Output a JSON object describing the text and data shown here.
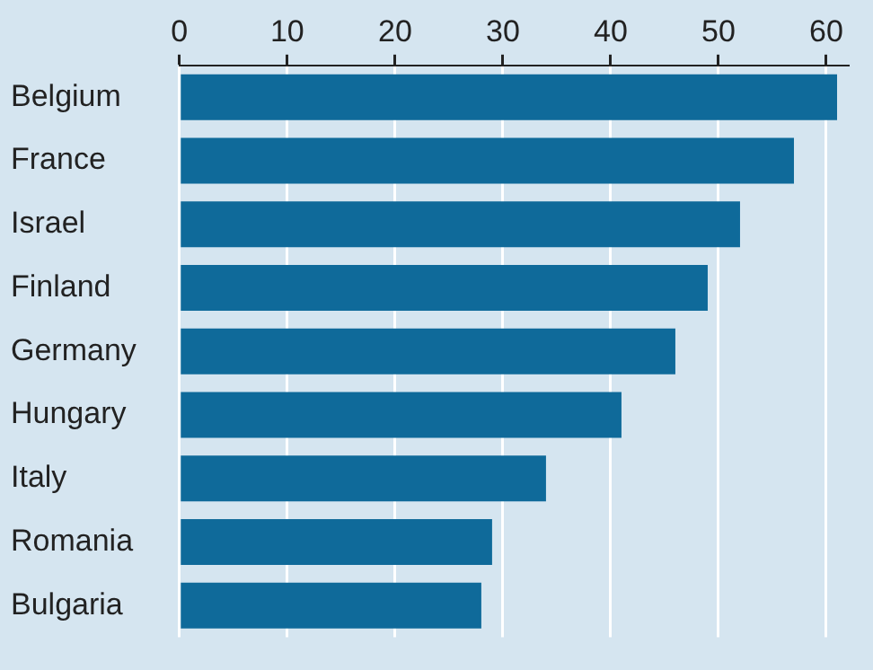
{
  "chart_data": {
    "type": "bar",
    "orientation": "horizontal",
    "categories": [
      "Belgium",
      "France",
      "Israel",
      "Finland",
      "Germany",
      "Hungary",
      "Italy",
      "Romania",
      "Bulgaria"
    ],
    "values": [
      61,
      57,
      52,
      49,
      46,
      41,
      34,
      29,
      28
    ],
    "color": "#0f6a9a",
    "xlim": [
      0,
      62
    ],
    "xticks": [
      0,
      10,
      20,
      30,
      40,
      50,
      60
    ],
    "grid": "x"
  }
}
